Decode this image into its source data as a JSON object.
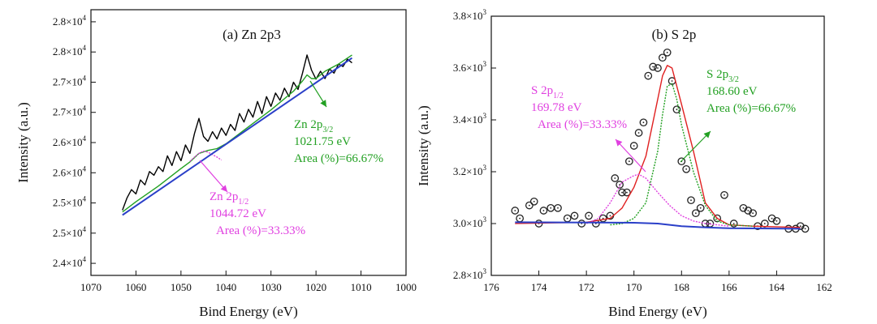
{
  "chart_data": [
    {
      "type": "line",
      "title": "(a) Zn 2p3",
      "xlabel": "Bind Energy (eV)",
      "ylabel": "Intensity (a.u.)",
      "xlim": [
        1070,
        1000
      ],
      "ylim": [
        23800,
        28200
      ],
      "x_ticks": [
        1070,
        1060,
        1050,
        1040,
        1030,
        1020,
        1010,
        1000
      ],
      "x_tick_labels": [
        "1070",
        "1060",
        "1050",
        "1040",
        "1030",
        "1020",
        "1010",
        "1000"
      ],
      "y_ticks": [
        24000,
        24500,
        25000,
        25500,
        26000,
        26500,
        27000,
        27500,
        28000
      ],
      "y_tick_labels": [
        {
          "mantissa": "2.4",
          "exp": "4"
        },
        {
          "mantissa": "2.5",
          "exp": "4"
        },
        {
          "mantissa": "2.5",
          "exp": "4"
        },
        {
          "mantissa": "2.6",
          "exp": "4"
        },
        {
          "mantissa": "2.6",
          "exp": "4"
        },
        {
          "mantissa": "2.7",
          "exp": "4"
        },
        {
          "mantissa": "2.7",
          "exp": "4"
        },
        {
          "mantissa": "2.8",
          "exp": "4"
        },
        {
          "mantissa": "2.8",
          "exp": "4"
        }
      ],
      "times_sign": "×10",
      "series": [
        {
          "name": "Raw",
          "color": "#000000",
          "x": [
            1063,
            1062,
            1061,
            1060,
            1059,
            1058,
            1057,
            1056,
            1055,
            1054,
            1053,
            1052,
            1051,
            1050,
            1049,
            1048,
            1047,
            1046,
            1045,
            1044,
            1043,
            1042,
            1041,
            1040,
            1039,
            1038,
            1037,
            1036,
            1035,
            1034,
            1033,
            1032,
            1031,
            1030,
            1029,
            1028,
            1027,
            1026,
            1025,
            1024,
            1023,
            1022,
            1021,
            1020,
            1019,
            1018,
            1017,
            1016,
            1015,
            1014,
            1013,
            1012
          ],
          "y": [
            24880,
            25080,
            25220,
            25150,
            25380,
            25300,
            25520,
            25460,
            25600,
            25520,
            25780,
            25620,
            25850,
            25700,
            25960,
            25820,
            26150,
            26400,
            26100,
            26020,
            26180,
            26060,
            26240,
            26120,
            26300,
            26200,
            26480,
            26340,
            26550,
            26420,
            26680,
            26480,
            26760,
            26600,
            26820,
            26700,
            26900,
            26760,
            27000,
            26880,
            27150,
            27450,
            27200,
            27050,
            27180,
            27060,
            27220,
            27150,
            27300,
            27260,
            27380,
            27320
          ]
        },
        {
          "name": "Fit",
          "color": "#22a022",
          "x": [
            1063,
            1060,
            1055,
            1050,
            1048,
            1046,
            1044,
            1042,
            1040,
            1035,
            1030,
            1025,
            1023,
            1022,
            1021,
            1020,
            1018,
            1015,
            1012
          ],
          "y": [
            24850,
            25020,
            25280,
            25570,
            25680,
            25820,
            25870,
            25900,
            25980,
            26260,
            26540,
            26850,
            27020,
            27120,
            27060,
            27060,
            27180,
            27300,
            27450
          ]
        },
        {
          "name": "Zn 2p1/2 peak",
          "color": "#e040e0",
          "x": [
            1048,
            1047,
            1046,
            1045,
            1044,
            1043,
            1042,
            1041
          ],
          "y": [
            25690,
            25760,
            25820,
            25860,
            25840,
            25800,
            25760,
            25710
          ]
        },
        {
          "name": "Background",
          "color": "#2a3fc8",
          "x": [
            1063,
            1012
          ],
          "y": [
            24800,
            27400
          ]
        }
      ],
      "annotations": [
        {
          "name": "zn-2p32-annotation",
          "color": "#22a022",
          "lines": [
            {
              "text": "Zn 2p",
              "sub": "3/2"
            },
            {
              "text": "1021.75 eV"
            },
            {
              "text": "Area (%)=66.67%"
            }
          ]
        },
        {
          "name": "zn-2p12-annotation",
          "color": "#e040e0",
          "lines": [
            {
              "text": "Zn 2p",
              "sub": "1/2"
            },
            {
              "text": "1044.72 eV"
            },
            {
              "text": "Area (%)=33.33%"
            }
          ]
        }
      ]
    },
    {
      "type": "scatter",
      "title": "(b) S 2p",
      "xlabel": "Bind Energy (eV)",
      "ylabel": "Intensity (a.u.)",
      "xlim": [
        176,
        162
      ],
      "ylim": [
        2800,
        3800
      ],
      "x_ticks": [
        176,
        174,
        172,
        170,
        168,
        166,
        164,
        162
      ],
      "x_tick_labels": [
        "176",
        "174",
        "172",
        "170",
        "168",
        "166",
        "164",
        "162"
      ],
      "y_ticks": [
        2800,
        3000,
        3200,
        3400,
        3600,
        3800
      ],
      "y_tick_labels": [
        {
          "mantissa": "2.8",
          "exp": "3"
        },
        {
          "mantissa": "3.0",
          "exp": "3"
        },
        {
          "mantissa": "3.2",
          "exp": "3"
        },
        {
          "mantissa": "3.4",
          "exp": "3"
        },
        {
          "mantissa": "3.6",
          "exp": "3"
        },
        {
          "mantissa": "3.8",
          "exp": "3"
        }
      ],
      "times_sign": "×10",
      "series": [
        {
          "name": "Raw data",
          "color": "#222222",
          "x": [
            175,
            174.8,
            174.4,
            174.2,
            174,
            173.8,
            173.5,
            173.2,
            172.8,
            172.5,
            172.2,
            171.9,
            171.6,
            171.3,
            171,
            170.8,
            170.6,
            170.5,
            170.3,
            170.2,
            170.0,
            169.8,
            169.6,
            169.4,
            169.2,
            169.0,
            168.8,
            168.6,
            168.4,
            168.2,
            168.0,
            167.8,
            167.6,
            167.4,
            167.2,
            167.0,
            166.8,
            166.5,
            166.2,
            165.8,
            165.4,
            165.2,
            165.0,
            164.8,
            164.5,
            164.2,
            164.0,
            163.5,
            163.2,
            163.0,
            162.8
          ],
          "y": [
            3050,
            3020,
            3070,
            3085,
            3000,
            3050,
            3060,
            3060,
            3020,
            3030,
            3000,
            3030,
            3000,
            3020,
            3030,
            3175,
            3150,
            3120,
            3120,
            3240,
            3300,
            3350,
            3390,
            3570,
            3605,
            3600,
            3640,
            3660,
            3550,
            3440,
            3240,
            3210,
            3090,
            3040,
            3060,
            3000,
            3000,
            3020,
            3110,
            3000,
            3060,
            3050,
            3040,
            2990,
            3000,
            3020,
            3010,
            2980,
            2980,
            2990,
            2980
          ]
        },
        {
          "name": "Envelope",
          "color": "#e02020",
          "x": [
            175,
            172,
            171,
            170.5,
            170,
            169.5,
            169,
            168.8,
            168.6,
            168.4,
            168,
            167.5,
            167,
            166.5,
            166,
            165,
            163
          ],
          "y": [
            3000,
            3005,
            3020,
            3060,
            3140,
            3260,
            3480,
            3570,
            3610,
            3600,
            3460,
            3280,
            3080,
            3020,
            2995,
            2990,
            2985
          ]
        },
        {
          "name": "S 2p3/2 peak",
          "color": "#22a022",
          "x": [
            171,
            170.5,
            170,
            169.5,
            169,
            168.8,
            168.6,
            168.4,
            168.2,
            168,
            167.5,
            167,
            166.5,
            166,
            165
          ],
          "y": [
            2995,
            3000,
            3020,
            3080,
            3280,
            3420,
            3530,
            3540,
            3480,
            3380,
            3200,
            3070,
            3010,
            2995,
            2990
          ]
        },
        {
          "name": "S 2p1/2 peak",
          "color": "#e040e0",
          "x": [
            172,
            171.5,
            171,
            170.5,
            170,
            169.8,
            169.5,
            169,
            168.5,
            168,
            167.5,
            167,
            166
          ],
          "y": [
            3000,
            3020,
            3080,
            3160,
            3185,
            3190,
            3175,
            3120,
            3070,
            3030,
            3010,
            3000,
            2990
          ]
        },
        {
          "name": "Background",
          "color": "#2a3fc8",
          "x": [
            175,
            170,
            169,
            168,
            167,
            166,
            163
          ],
          "y": [
            3005,
            3003,
            3000,
            2990,
            2985,
            2982,
            2980
          ]
        }
      ],
      "annotations": [
        {
          "name": "s-2p32-annotation",
          "color": "#22a022",
          "lines": [
            {
              "text": "S 2p",
              "sub": "3/2"
            },
            {
              "text": "168.60 eV"
            },
            {
              "text": "Area (%)=66.67%"
            }
          ]
        },
        {
          "name": "s-2p12-annotation",
          "color": "#e040e0",
          "lines": [
            {
              "text": "S 2p",
              "sub": "1/2"
            },
            {
              "text": "169.78 eV"
            },
            {
              "text": "Area (%)=33.33%"
            }
          ]
        }
      ]
    }
  ]
}
